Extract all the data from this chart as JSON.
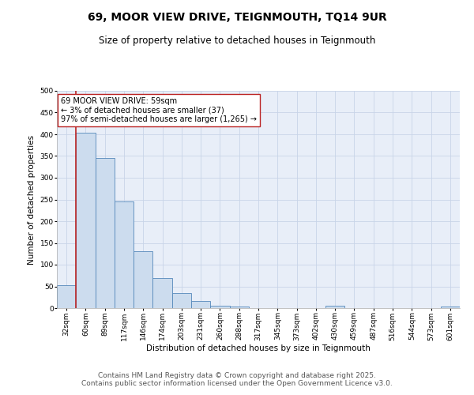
{
  "title": "69, MOOR VIEW DRIVE, TEIGNMOUTH, TQ14 9UR",
  "subtitle": "Size of property relative to detached houses in Teignmouth",
  "xlabel": "Distribution of detached houses by size in Teignmouth",
  "ylabel": "Number of detached properties",
  "bar_labels": [
    "32sqm",
    "60sqm",
    "89sqm",
    "117sqm",
    "146sqm",
    "174sqm",
    "203sqm",
    "231sqm",
    "260sqm",
    "288sqm",
    "317sqm",
    "345sqm",
    "373sqm",
    "402sqm",
    "430sqm",
    "459sqm",
    "487sqm",
    "516sqm",
    "544sqm",
    "573sqm",
    "601sqm"
  ],
  "bar_values": [
    52,
    403,
    345,
    246,
    131,
    70,
    34,
    17,
    5,
    4,
    0,
    0,
    0,
    0,
    5,
    0,
    0,
    0,
    0,
    0,
    4
  ],
  "bar_color": "#ccdcee",
  "bar_edge_color": "#5588bb",
  "vline_color": "#bb2222",
  "annotation_text": "69 MOOR VIEW DRIVE: 59sqm\n← 3% of detached houses are smaller (37)\n97% of semi-detached houses are larger (1,265) →",
  "annotation_box_facecolor": "#ffffff",
  "annotation_box_edgecolor": "#bb2222",
  "ylim": [
    0,
    500
  ],
  "yticks": [
    0,
    50,
    100,
    150,
    200,
    250,
    300,
    350,
    400,
    450,
    500
  ],
  "grid_color": "#c8d4e8",
  "background_color": "#e8eef8",
  "footer_text": "Contains HM Land Registry data © Crown copyright and database right 2025.\nContains public sector information licensed under the Open Government Licence v3.0.",
  "title_fontsize": 10,
  "subtitle_fontsize": 8.5,
  "axis_label_fontsize": 7.5,
  "tick_fontsize": 6.5,
  "footer_fontsize": 6.5,
  "annotation_fontsize": 7
}
